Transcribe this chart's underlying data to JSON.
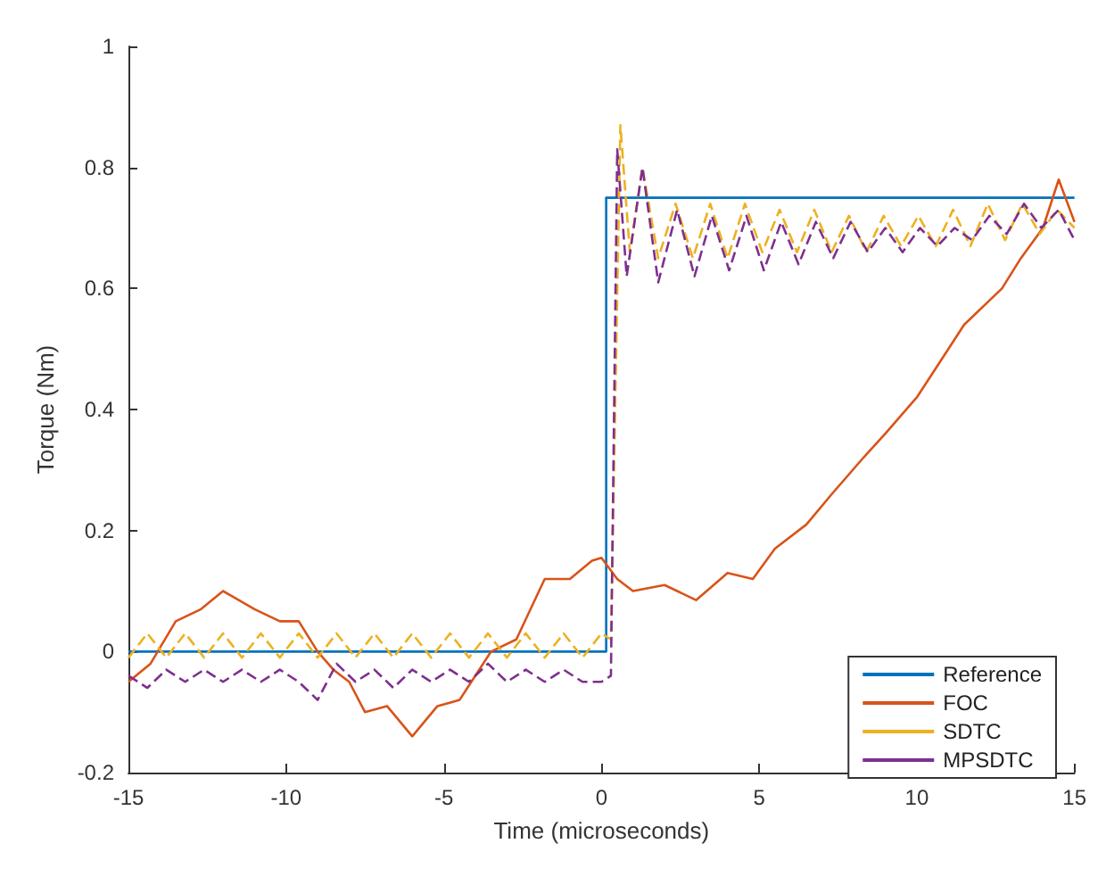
{
  "chart_data": {
    "type": "line",
    "xlabel": "Time (microseconds)",
    "ylabel": "Torque (Nm)",
    "xlim": [
      -15,
      15
    ],
    "xticks": [
      -15,
      -10,
      -5,
      0,
      5,
      10,
      15
    ],
    "ylim": [
      -0.2,
      1
    ],
    "yticks": [
      -0.2,
      0,
      0.2,
      0.4,
      0.6,
      0.8,
      1
    ],
    "legend": "bottom right",
    "grid": false,
    "marker": "none",
    "series": [
      {
        "name": "Reference",
        "color": "#0072bd",
        "line_style": "solid",
        "x": [
          -15,
          0.15,
          0.15,
          15
        ],
        "values": [
          0,
          0,
          0.75,
          0.75
        ]
      },
      {
        "name": "FOC",
        "color": "#d95319",
        "line_style": "solid",
        "x": [
          -15,
          -14.3,
          -13.5,
          -12.7,
          -12,
          -11,
          -10.2,
          -9.6,
          -9,
          -8.5,
          -8,
          -7.5,
          -6.8,
          -6,
          -5.2,
          -4.5,
          -3.5,
          -2.7,
          -1.8,
          -1,
          -0.3,
          0,
          0.5,
          1,
          2,
          3,
          4,
          4.8,
          5.5,
          6.5,
          7.3,
          8.3,
          9,
          10,
          11,
          11.5,
          12.7,
          13.3,
          14,
          14.5,
          15
        ],
        "values": [
          -0.05,
          -0.02,
          0.05,
          0.07,
          0.1,
          0.07,
          0.05,
          0.05,
          0,
          -0.03,
          -0.05,
          -0.1,
          -0.09,
          -0.14,
          -0.09,
          -0.08,
          0,
          0.02,
          0.12,
          0.12,
          0.15,
          0.155,
          0.12,
          0.1,
          0.11,
          0.085,
          0.13,
          0.12,
          0.17,
          0.21,
          0.26,
          0.32,
          0.36,
          0.42,
          0.5,
          0.54,
          0.6,
          0.65,
          0.7,
          0.78,
          0.71
        ]
      },
      {
        "name": "SDTC",
        "color": "#edb120",
        "line_style": "dashed",
        "x": [
          -15,
          -14.4,
          -13.8,
          -13.2,
          -12.6,
          -12,
          -11.4,
          -10.8,
          -10.2,
          -9.6,
          -9,
          -8.4,
          -7.8,
          -7.2,
          -6.6,
          -6,
          -5.4,
          -4.8,
          -4.2,
          -3.6,
          -3,
          -2.4,
          -1.8,
          -1.2,
          -0.6,
          0,
          0.3,
          0.6,
          0.9,
          1.3,
          1.8,
          2.35,
          2.9,
          3.45,
          4,
          4.55,
          5.1,
          5.65,
          6.2,
          6.75,
          7.3,
          7.85,
          8.4,
          8.95,
          9.5,
          10.05,
          10.6,
          11.15,
          11.7,
          12.25,
          12.8,
          13.35,
          13.9,
          14.45,
          15
        ],
        "values": [
          -0.01,
          0.03,
          -0.01,
          0.03,
          -0.01,
          0.03,
          -0.01,
          0.03,
          -0.01,
          0.03,
          -0.01,
          0.03,
          -0.01,
          0.03,
          -0.01,
          0.03,
          -0.01,
          0.03,
          -0.01,
          0.03,
          -0.01,
          0.03,
          -0.01,
          0.03,
          -0.01,
          0.03,
          0.02,
          0.87,
          0.66,
          0.8,
          0.65,
          0.74,
          0.65,
          0.74,
          0.65,
          0.74,
          0.66,
          0.73,
          0.66,
          0.73,
          0.66,
          0.72,
          0.66,
          0.72,
          0.67,
          0.72,
          0.67,
          0.73,
          0.67,
          0.74,
          0.68,
          0.74,
          0.69,
          0.73,
          0.7
        ]
      },
      {
        "name": "MPSDTC",
        "color": "#7e2f8e",
        "line_style": "dashed",
        "x": [
          -15,
          -14.4,
          -13.8,
          -13.2,
          -12.6,
          -12,
          -11.4,
          -10.8,
          -10.2,
          -9.6,
          -9,
          -8.4,
          -7.8,
          -7.2,
          -6.6,
          -6,
          -5.4,
          -4.8,
          -4.2,
          -3.6,
          -3,
          -2.4,
          -1.8,
          -1.2,
          -0.6,
          0,
          0.3,
          0.5,
          0.8,
          1.3,
          1.8,
          2.4,
          2.95,
          3.5,
          4.05,
          4.6,
          5.15,
          5.7,
          6.25,
          6.8,
          7.35,
          7.9,
          8.45,
          9,
          9.55,
          10.1,
          10.65,
          11.2,
          11.75,
          12.3,
          12.85,
          13.4,
          13.95,
          14.5,
          15
        ],
        "values": [
          -0.04,
          -0.06,
          -0.03,
          -0.05,
          -0.03,
          -0.05,
          -0.03,
          -0.05,
          -0.03,
          -0.05,
          -0.08,
          -0.02,
          -0.05,
          -0.03,
          -0.06,
          -0.03,
          -0.05,
          -0.03,
          -0.05,
          -0.02,
          -0.05,
          -0.03,
          -0.05,
          -0.03,
          -0.05,
          -0.05,
          -0.04,
          0.83,
          0.62,
          0.8,
          0.61,
          0.73,
          0.62,
          0.72,
          0.63,
          0.72,
          0.63,
          0.71,
          0.64,
          0.71,
          0.65,
          0.71,
          0.66,
          0.7,
          0.66,
          0.7,
          0.67,
          0.7,
          0.68,
          0.72,
          0.69,
          0.74,
          0.7,
          0.73,
          0.68
        ]
      }
    ]
  }
}
